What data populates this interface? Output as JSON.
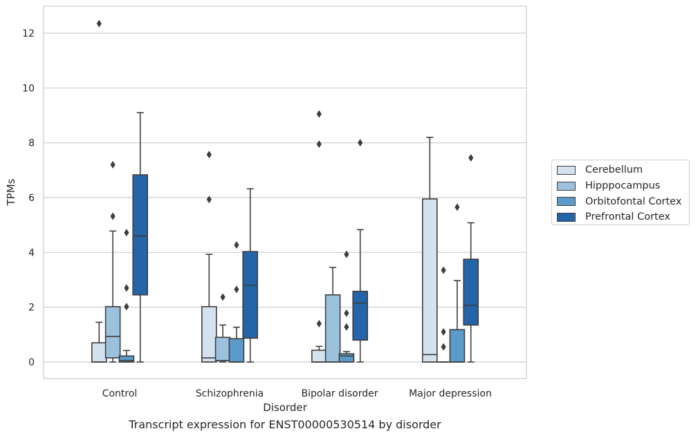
{
  "chart_data": {
    "type": "box",
    "xlabel": "Disorder",
    "ylabel": "TPMs",
    "caption": "Transcript expression for ENST00000530514 by disorder",
    "ylim": [
      -0.6,
      13.0
    ],
    "yticks": [
      0,
      2,
      4,
      6,
      8,
      10,
      12
    ],
    "grid": true,
    "legend_position": "right, outside plot",
    "categories": [
      "Control",
      "Schizophrenia",
      "Bipolar disorder",
      "Major depression"
    ],
    "series": [
      {
        "name": "Cerebellum",
        "color": "#d4e2f0",
        "boxes": [
          {
            "min": 0,
            "q1": 0,
            "median": 0,
            "q3": 0.7,
            "max": 1.45,
            "outliers": [
              12.35
            ]
          },
          {
            "min": 0,
            "q1": 0,
            "median": 0.15,
            "q3": 2.02,
            "max": 3.93,
            "outliers": [
              5.93,
              7.57
            ]
          },
          {
            "min": 0,
            "q1": 0,
            "median": 0,
            "q3": 0.43,
            "max": 0.57,
            "outliers": [
              1.4,
              7.95,
              9.05
            ]
          },
          {
            "min": 0,
            "q1": 0,
            "median": 0.27,
            "q3": 5.95,
            "max": 8.2,
            "outliers": []
          }
        ]
      },
      {
        "name": "Hipppocampus",
        "color": "#9bc1dd",
        "boxes": [
          {
            "min": 0,
            "q1": 0.15,
            "median": 0.93,
            "q3": 2.02,
            "max": 4.78,
            "outliers": [
              5.32,
              7.2
            ]
          },
          {
            "min": 0,
            "q1": 0.05,
            "median": 0.05,
            "q3": 0.9,
            "max": 1.35,
            "outliers": [
              2.37
            ]
          },
          {
            "min": 0,
            "q1": 0,
            "median": 0,
            "q3": 2.45,
            "max": 3.45,
            "outliers": []
          },
          {
            "min": 0,
            "q1": 0,
            "median": 0,
            "q3": 0,
            "max": 0,
            "outliers": [
              0.55,
              1.1,
              3.35
            ]
          }
        ]
      },
      {
        "name": "Orbitofontal Cortex",
        "color": "#5a9bc9",
        "boxes": [
          {
            "min": 0,
            "q1": 0,
            "median": 0.05,
            "q3": 0.22,
            "max": 0.42,
            "outliers": [
              2.02,
              2.7,
              4.72
            ]
          },
          {
            "min": 0,
            "q1": 0,
            "median": 0,
            "q3": 0.85,
            "max": 1.27,
            "outliers": [
              2.65,
              4.27
            ]
          },
          {
            "min": 0,
            "q1": 0,
            "median": 0.22,
            "q3": 0.3,
            "max": 0.38,
            "outliers": [
              1.28,
              1.78,
              3.93
            ]
          },
          {
            "min": 0,
            "q1": 0,
            "median": 0,
            "q3": 1.18,
            "max": 2.97,
            "outliers": [
              5.65
            ]
          }
        ]
      },
      {
        "name": "Prefrontal Cortex",
        "color": "#2464a8",
        "boxes": [
          {
            "min": 0,
            "q1": 2.45,
            "median": 4.6,
            "q3": 6.83,
            "max": 9.1,
            "outliers": []
          },
          {
            "min": 0,
            "q1": 0.87,
            "median": 2.8,
            "q3": 4.03,
            "max": 6.32,
            "outliers": []
          },
          {
            "min": 0,
            "q1": 0.8,
            "median": 2.15,
            "q3": 2.58,
            "max": 4.83,
            "outliers": [
              8.0
            ]
          },
          {
            "min": 0,
            "q1": 1.35,
            "median": 2.07,
            "q3": 3.75,
            "max": 5.08,
            "outliers": [
              7.45
            ]
          }
        ]
      }
    ]
  }
}
